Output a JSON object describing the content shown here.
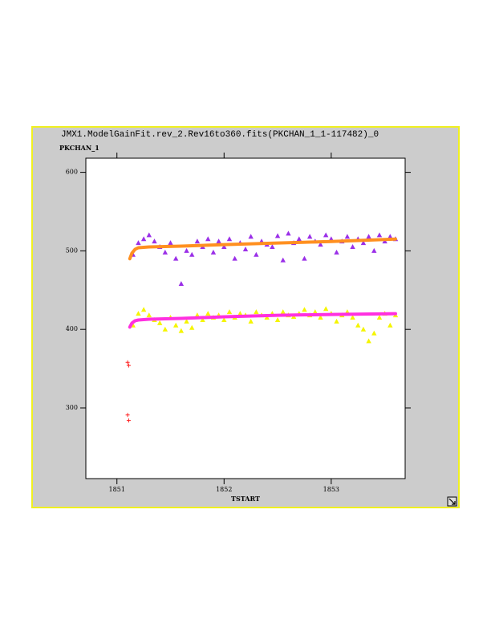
{
  "chart_data": {
    "type": "scatter",
    "title": "JMX1.ModelGainFit.rev_2.Rev16to360.fits(PKCHAN_1_1-117482)_0",
    "y_label": "PKCHAN_1",
    "x_label": "TSTART",
    "xlim": [
      1850.71,
      1853.69
    ],
    "ylim": [
      210,
      618
    ],
    "xticks": [
      1851,
      1852,
      1853
    ],
    "yticks": [
      300,
      400,
      500,
      600
    ],
    "grid": false,
    "series": [
      {
        "color": "#9b30e8",
        "marker": "triangle",
        "x": [
          1851.15,
          1851.2,
          1851.25,
          1851.3,
          1851.35,
          1851.4,
          1851.45,
          1851.5,
          1851.55,
          1851.6,
          1851.65,
          1851.7,
          1851.75,
          1851.8,
          1851.85,
          1851.9,
          1851.95,
          1852.0,
          1852.05,
          1852.1,
          1852.15,
          1852.2,
          1852.25,
          1852.3,
          1852.35,
          1852.4,
          1852.45,
          1852.5,
          1852.55,
          1852.6,
          1852.65,
          1852.7,
          1852.75,
          1852.8,
          1852.85,
          1852.9,
          1852.95,
          1853.0,
          1853.05,
          1853.1,
          1853.15,
          1853.2,
          1853.25,
          1853.3,
          1853.35,
          1853.4,
          1853.45,
          1853.5,
          1853.55,
          1853.6
        ],
        "values": [
          495,
          510,
          515,
          520,
          512,
          505,
          498,
          510,
          490,
          458,
          500,
          495,
          512,
          505,
          515,
          498,
          512,
          505,
          515,
          490,
          510,
          502,
          518,
          495,
          512,
          508,
          505,
          519,
          488,
          522,
          510,
          515,
          490,
          518,
          512,
          508,
          520,
          515,
          498,
          512,
          518,
          505,
          515,
          510,
          518,
          500,
          520,
          512,
          518,
          515
        ]
      },
      {
        "color": "#f5f500",
        "marker": "triangle",
        "x": [
          1851.15,
          1851.2,
          1851.25,
          1851.3,
          1851.35,
          1851.4,
          1851.45,
          1851.5,
          1851.55,
          1851.6,
          1851.65,
          1851.7,
          1851.75,
          1851.8,
          1851.85,
          1851.9,
          1851.95,
          1852.0,
          1852.05,
          1852.1,
          1852.15,
          1852.2,
          1852.25,
          1852.3,
          1852.35,
          1852.4,
          1852.45,
          1852.5,
          1852.55,
          1852.6,
          1852.65,
          1852.7,
          1852.75,
          1852.8,
          1852.85,
          1852.9,
          1852.95,
          1853.0,
          1853.05,
          1853.1,
          1853.15,
          1853.2,
          1853.25,
          1853.3,
          1853.35,
          1853.4,
          1853.45,
          1853.5,
          1853.55,
          1853.6
        ],
        "values": [
          405,
          420,
          425,
          418,
          412,
          408,
          400,
          415,
          405,
          398,
          410,
          402,
          418,
          412,
          420,
          415,
          418,
          412,
          422,
          415,
          420,
          418,
          410,
          422,
          418,
          415,
          420,
          412,
          422,
          418,
          416,
          420,
          425,
          418,
          422,
          415,
          426,
          420,
          410,
          418,
          422,
          415,
          405,
          400,
          385,
          395,
          415,
          420,
          405,
          418
        ]
      },
      {
        "color": "#ff2020",
        "marker": "plus",
        "x": [
          1851.1,
          1851.11,
          1851.1,
          1851.11
        ],
        "values": [
          358,
          354,
          291,
          284
        ]
      },
      {
        "color": "#ff9020",
        "marker": "line",
        "x": [
          1851.12,
          1851.14,
          1851.17,
          1851.2,
          1851.3,
          1851.6,
          1852.0,
          1852.5,
          1853.0,
          1853.6
        ],
        "values": [
          490,
          497,
          502,
          504,
          505,
          506,
          508,
          510,
          512,
          515
        ]
      },
      {
        "color": "#ff30e0",
        "marker": "line",
        "x": [
          1851.12,
          1851.14,
          1851.17,
          1851.2,
          1851.3,
          1851.6,
          1852.0,
          1852.5,
          1853.0,
          1853.6
        ],
        "values": [
          403,
          408,
          411,
          412,
          413,
          414,
          416,
          418,
          419,
          420
        ]
      }
    ]
  }
}
